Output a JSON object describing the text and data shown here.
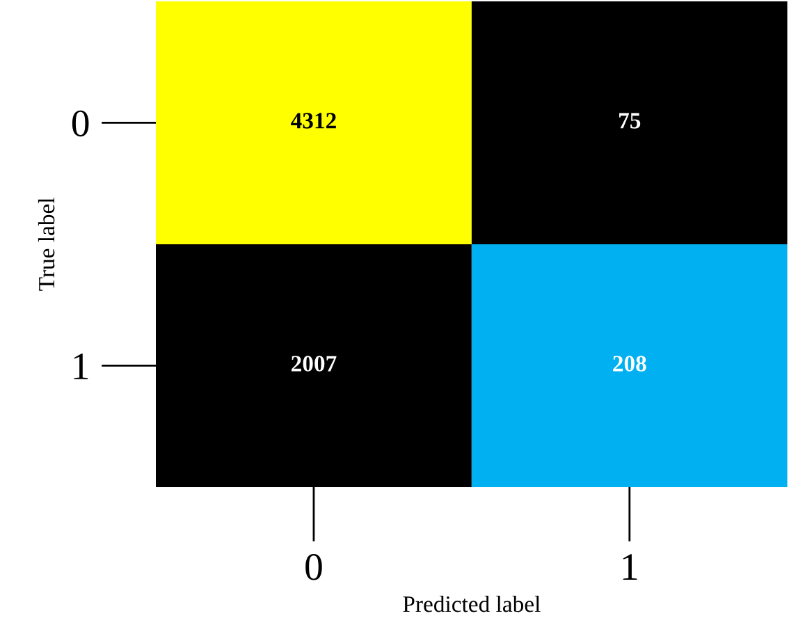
{
  "chart_data": {
    "type": "heatmap",
    "xlabel": "Predicted label",
    "ylabel": "True label",
    "categories": [
      "0",
      "1"
    ],
    "y_categories": [
      "0",
      "1"
    ],
    "cells": [
      [
        4312,
        75
      ],
      [
        2007,
        208
      ]
    ],
    "colors": [
      [
        "#ffff00",
        "#000000"
      ],
      [
        "#000000",
        "#00b0f0"
      ]
    ],
    "data_labels": true,
    "grid": false
  }
}
